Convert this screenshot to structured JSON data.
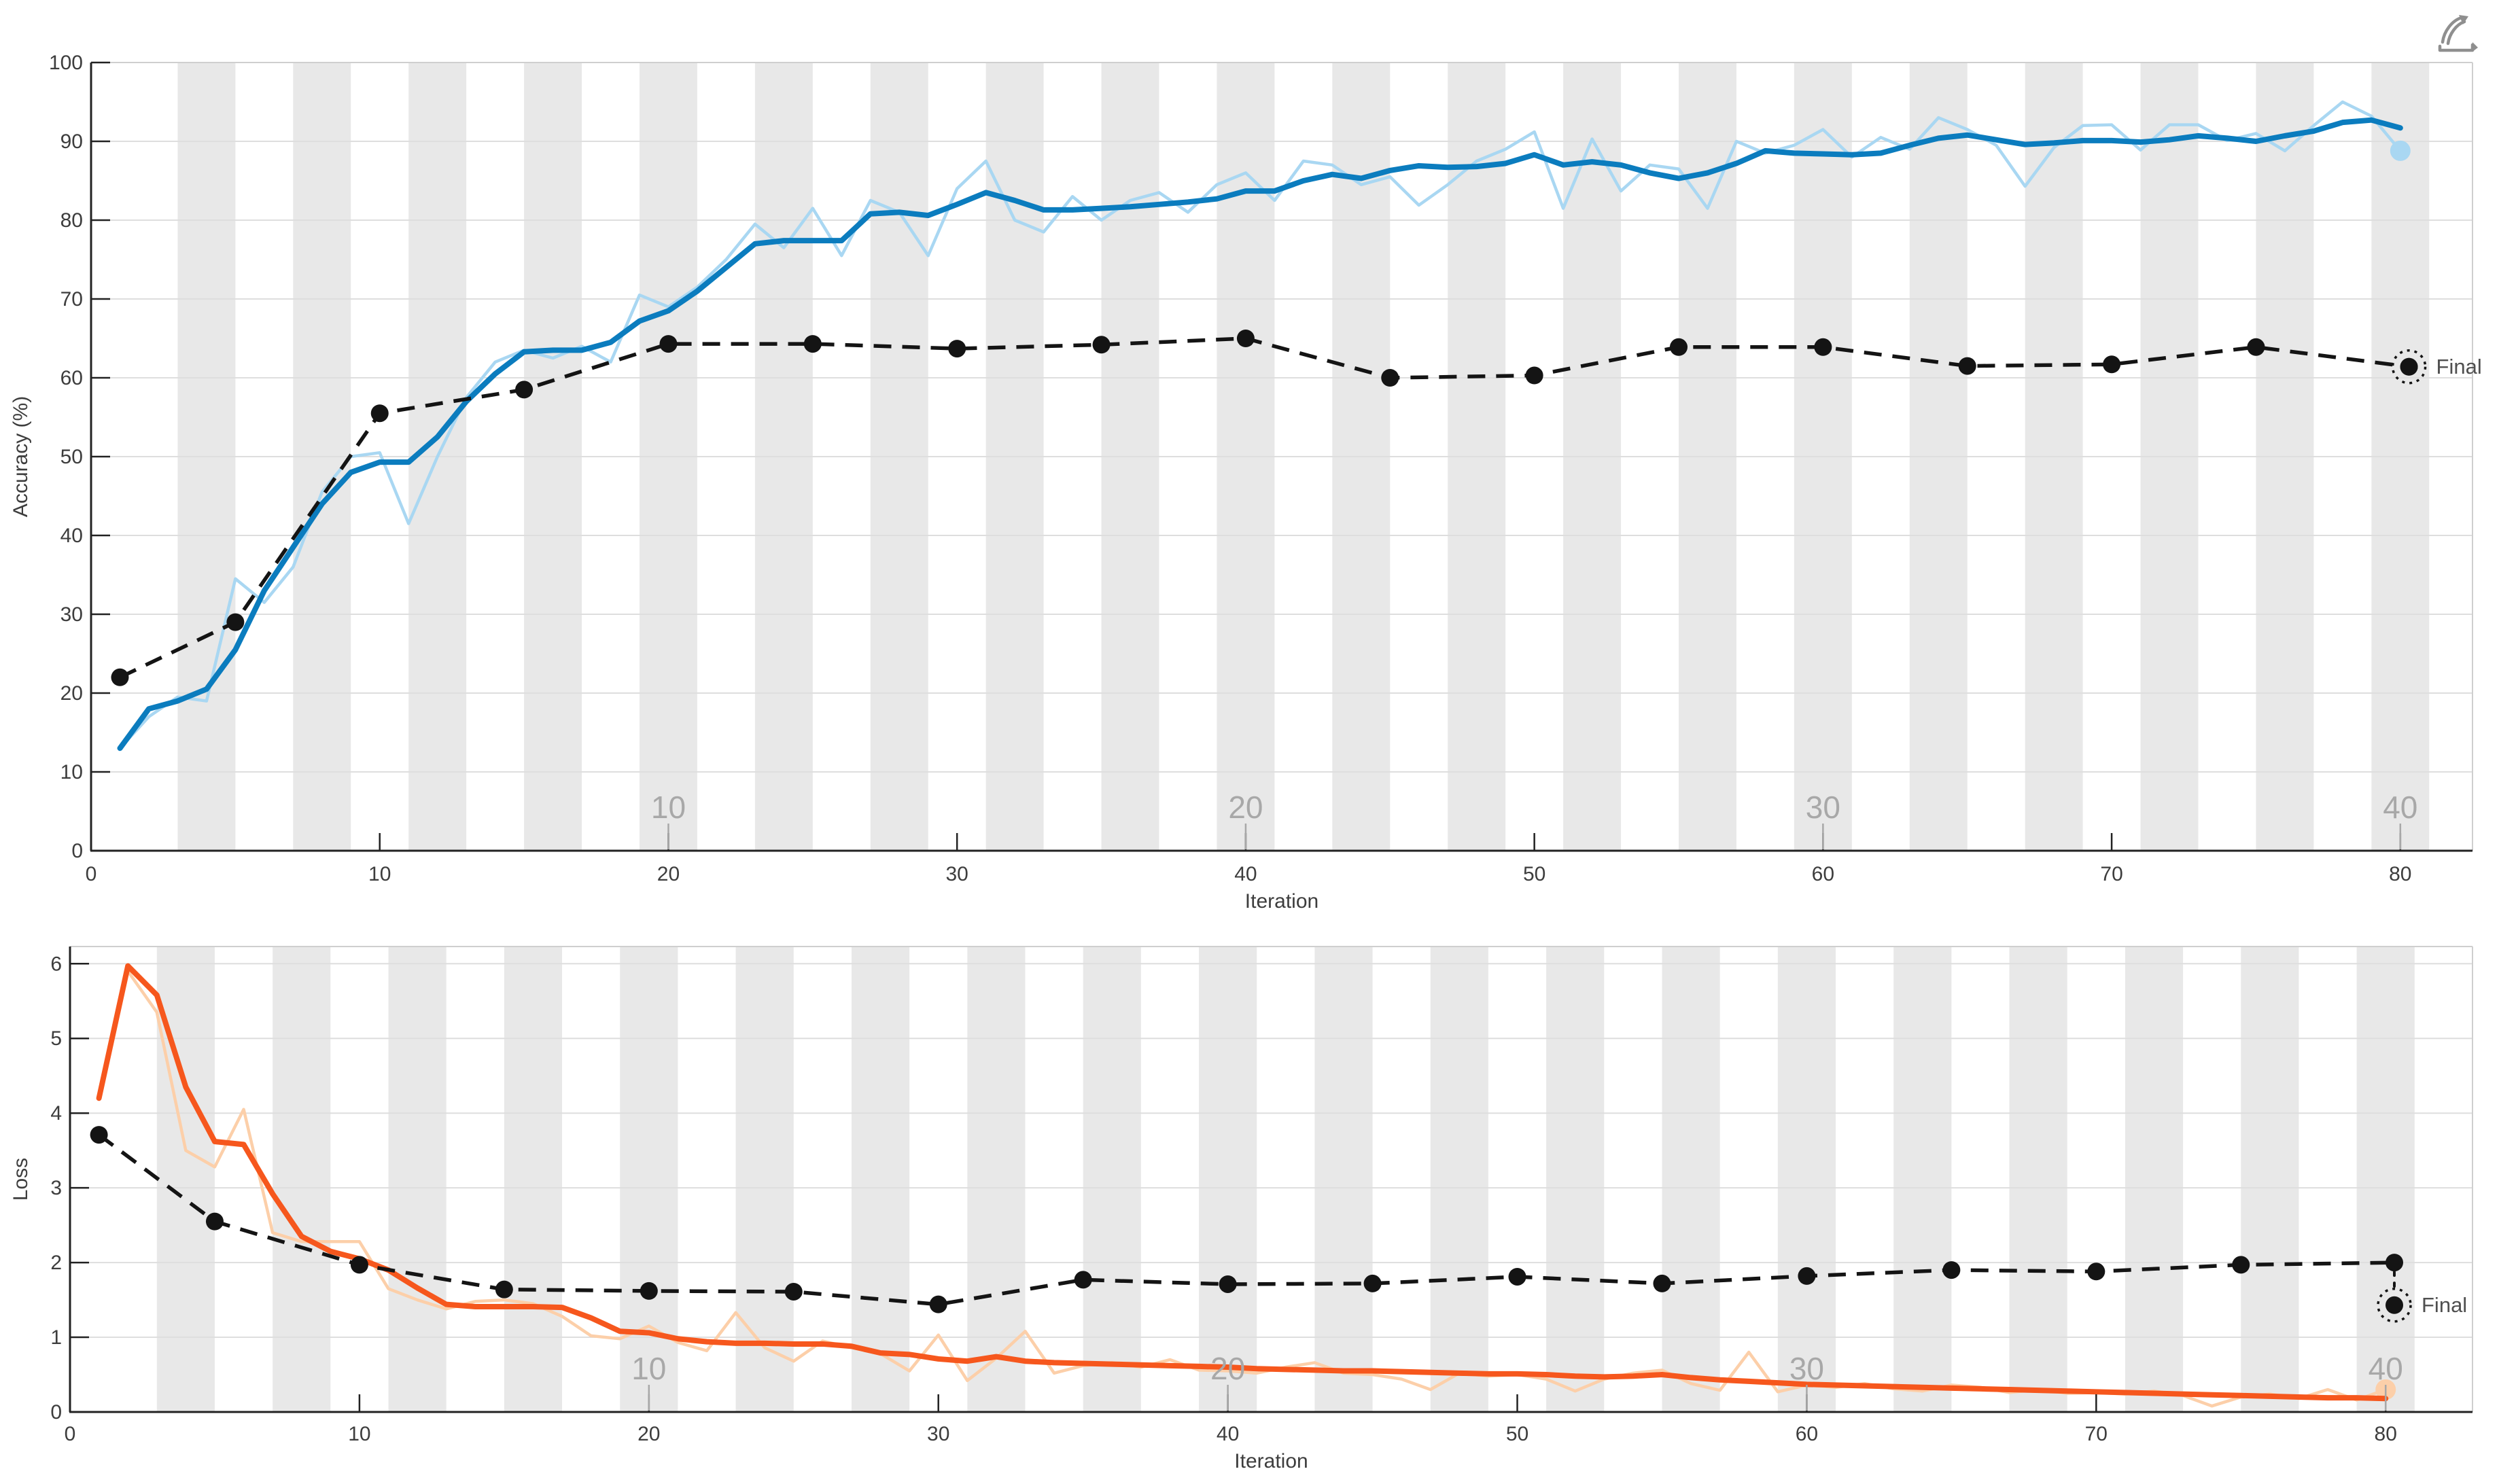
{
  "figure": {
    "final_label": "Final",
    "iteration_axis_label": "Iteration",
    "toolbar": {
      "brush_icon": "brush-icon"
    }
  },
  "colors": {
    "accuracy_smoothed": "#0b7cbe",
    "accuracy_raw": "#a9d7f2",
    "loss_smoothed": "#f6571d",
    "loss_raw": "#fccfa9",
    "validation": "#141414",
    "epoch_band": "#e8e8e8",
    "gridline": "#dedede",
    "light_border": "#cfcfcf",
    "axis_line": "#222222",
    "tick_label": "#3d3d3d",
    "epoch_label": "#a8a8a8",
    "final_text": "#4f4f4f",
    "icon": "#8f8f8f"
  },
  "chart_data": [
    {
      "type": "line",
      "ylabel": "Accuracy (%)",
      "xlabel": "Iteration",
      "xlim": [
        0,
        82.5
      ],
      "ylim": [
        0,
        100
      ],
      "xticks": [
        0,
        10,
        20,
        30,
        40,
        50,
        60,
        70,
        80
      ],
      "yticks": [
        0,
        10,
        20,
        30,
        40,
        50,
        60,
        70,
        80,
        90,
        100
      ],
      "grid": "horizontal",
      "epoch_bands": {
        "first_start_iteration": 3,
        "band_width": 2,
        "spacing": 4,
        "count": 20
      },
      "epoch_axis_labels": [
        {
          "label": "10",
          "at_iteration": 20
        },
        {
          "label": "20",
          "at_iteration": 40
        },
        {
          "label": "30",
          "at_iteration": 60
        },
        {
          "label": "40",
          "at_iteration": 80
        }
      ],
      "final_marker": {
        "iteration": 80.3,
        "value": 61.4,
        "label": "Final",
        "connector_from_value": null
      },
      "series": [
        {
          "name": "training-accuracy-raw",
          "role": "raw",
          "end_dot": true,
          "x": [
            1,
            2,
            3,
            4,
            5,
            6,
            7,
            8,
            9,
            10,
            11,
            12,
            13,
            14,
            15,
            16,
            17,
            18,
            19,
            20,
            21,
            22,
            23,
            24,
            25,
            26,
            27,
            28,
            29,
            30,
            31,
            32,
            33,
            34,
            35,
            36,
            37,
            38,
            39,
            40,
            41,
            42,
            43,
            44,
            45,
            46,
            47,
            48,
            49,
            50,
            51,
            52,
            53,
            54,
            55,
            56,
            57,
            58,
            59,
            60,
            61,
            62,
            63,
            64,
            65,
            66,
            67,
            68,
            69,
            70,
            71,
            72,
            73,
            74,
            75,
            76,
            77,
            78,
            79,
            80
          ],
          "y": [
            13,
            17,
            19.5,
            19,
            34.5,
            31.5,
            36,
            45.5,
            50,
            50.5,
            41.5,
            50,
            57.5,
            62,
            63.5,
            62.5,
            64,
            62,
            70.5,
            69,
            71.5,
            75,
            79.5,
            76.5,
            81.5,
            75.5,
            82.5,
            81,
            75.5,
            84,
            87.5,
            80,
            78.5,
            83,
            80,
            82.5,
            83.5,
            81,
            84.5,
            86,
            82.5,
            87.5,
            87,
            84.5,
            85.5,
            81.9,
            84.5,
            87.5,
            89,
            91.2,
            81.5,
            90.3,
            83.7,
            87,
            86.5,
            81.5,
            90,
            88.5,
            89.5,
            91.5,
            88,
            90.5,
            89,
            93,
            91.5,
            89.5,
            84.3,
            89.2,
            92,
            92.1,
            88.9,
            92.1,
            92.1,
            90.1,
            91,
            88.8,
            92,
            95,
            93.2,
            88.8
          ]
        },
        {
          "name": "training-accuracy-smoothed",
          "role": "smoothed",
          "end_dot": false,
          "x": [
            1,
            2,
            3,
            4,
            5,
            6,
            7,
            8,
            9,
            10,
            11,
            12,
            13,
            14,
            15,
            16,
            17,
            18,
            19,
            20,
            21,
            22,
            23,
            24,
            25,
            26,
            27,
            28,
            29,
            30,
            31,
            32,
            33,
            34,
            35,
            36,
            37,
            38,
            39,
            40,
            41,
            42,
            43,
            44,
            45,
            46,
            47,
            48,
            49,
            50,
            51,
            52,
            53,
            54,
            55,
            56,
            57,
            58,
            59,
            60,
            61,
            62,
            63,
            64,
            65,
            66,
            67,
            68,
            69,
            70,
            71,
            72,
            73,
            74,
            75,
            76,
            77,
            78,
            79,
            80
          ],
          "y": [
            13,
            18,
            19,
            20.5,
            25.5,
            33,
            38.5,
            44,
            48,
            49.3,
            49.3,
            52.5,
            57,
            60.5,
            63.3,
            63.5,
            63.5,
            64.5,
            67.2,
            68.5,
            71,
            74,
            77,
            77.4,
            77.4,
            77.4,
            80.8,
            81,
            80.6,
            82,
            83.5,
            82.5,
            81.3,
            81.3,
            81.5,
            81.7,
            82,
            82.3,
            82.7,
            83.7,
            83.7,
            85,
            85.8,
            85.3,
            86.3,
            86.9,
            86.7,
            86.8,
            87.2,
            88.3,
            87,
            87.4,
            87,
            86,
            85.3,
            86,
            87.2,
            88.8,
            88.5,
            88.4,
            88.3,
            88.5,
            89.5,
            90.4,
            90.8,
            90.2,
            89.6,
            89.8,
            90.1,
            90.1,
            89.9,
            90.2,
            90.7,
            90.4,
            90,
            90.7,
            91.3,
            92.4,
            92.7,
            91.7
          ]
        },
        {
          "name": "validation-accuracy",
          "role": "validation",
          "markers": true,
          "x": [
            1,
            5,
            10,
            15,
            20,
            25,
            30,
            35,
            40,
            45,
            50,
            55,
            60,
            65,
            70,
            75,
            80.3
          ],
          "y": [
            22,
            29,
            55.5,
            58.5,
            64.3,
            64.3,
            63.7,
            64.2,
            65,
            60,
            60.3,
            63.9,
            63.9,
            61.5,
            61.7,
            63.9,
            61.4
          ]
        }
      ]
    },
    {
      "type": "line",
      "ylabel": "Loss",
      "xlabel": "Iteration",
      "xlim": [
        0,
        83
      ],
      "ylim": [
        0,
        6.23
      ],
      "xticks": [
        0,
        10,
        20,
        30,
        40,
        50,
        60,
        70,
        80
      ],
      "yticks": [
        0,
        1,
        2,
        3,
        4,
        5,
        6
      ],
      "grid": "horizontal",
      "epoch_bands": {
        "first_start_iteration": 3,
        "band_width": 2,
        "spacing": 4,
        "count": 20
      },
      "epoch_axis_labels": [
        {
          "label": "10",
          "at_iteration": 20
        },
        {
          "label": "20",
          "at_iteration": 40
        },
        {
          "label": "30",
          "at_iteration": 60
        },
        {
          "label": "40",
          "at_iteration": 80
        }
      ],
      "final_marker": {
        "iteration": 80.3,
        "value": 1.43,
        "label": "Final",
        "connector_from_value": 2.0
      },
      "series": [
        {
          "name": "training-loss-raw",
          "role": "raw",
          "end_dot": true,
          "x": [
            1,
            2,
            3,
            4,
            5,
            6,
            7,
            8,
            9,
            10,
            11,
            12,
            13,
            14,
            15,
            16,
            17,
            18,
            19,
            20,
            21,
            22,
            23,
            24,
            25,
            26,
            27,
            28,
            29,
            30,
            31,
            32,
            33,
            34,
            35,
            36,
            37,
            38,
            39,
            40,
            41,
            42,
            43,
            44,
            45,
            46,
            47,
            48,
            49,
            50,
            51,
            52,
            53,
            54,
            55,
            56,
            57,
            58,
            59,
            60,
            61,
            62,
            63,
            64,
            65,
            66,
            67,
            68,
            69,
            70,
            71,
            72,
            73,
            74,
            75,
            76,
            77,
            78,
            79,
            80
          ],
          "y": [
            4.2,
            5.9,
            5.35,
            3.5,
            3.28,
            4.05,
            2.4,
            2.28,
            2.28,
            2.28,
            1.65,
            1.5,
            1.38,
            1.48,
            1.5,
            1.45,
            1.28,
            1.02,
            0.98,
            1.15,
            0.93,
            0.82,
            1.33,
            0.86,
            0.68,
            0.95,
            0.86,
            0.78,
            0.55,
            1.03,
            0.42,
            0.72,
            1.08,
            0.52,
            0.62,
            0.66,
            0.6,
            0.7,
            0.56,
            0.55,
            0.52,
            0.6,
            0.66,
            0.52,
            0.5,
            0.44,
            0.3,
            0.52,
            0.48,
            0.5,
            0.44,
            0.28,
            0.44,
            0.52,
            0.56,
            0.38,
            0.29,
            0.8,
            0.27,
            0.36,
            0.33,
            0.38,
            0.31,
            0.28,
            0.36,
            0.33,
            0.26,
            0.3,
            0.25,
            0.26,
            0.24,
            0.28,
            0.22,
            0.08,
            0.2,
            0.24,
            0.18,
            0.3,
            0.16,
            0.3
          ]
        },
        {
          "name": "training-loss-smoothed",
          "role": "smoothed",
          "end_dot": false,
          "x": [
            1,
            2,
            3,
            4,
            5,
            6,
            7,
            8,
            9,
            10,
            11,
            12,
            13,
            14,
            15,
            16,
            17,
            18,
            19,
            20,
            21,
            22,
            23,
            24,
            25,
            26,
            27,
            28,
            29,
            30,
            31,
            32,
            33,
            34,
            35,
            36,
            37,
            38,
            39,
            40,
            41,
            42,
            43,
            44,
            45,
            46,
            47,
            48,
            49,
            50,
            51,
            52,
            53,
            54,
            55,
            56,
            57,
            58,
            59,
            60,
            61,
            62,
            63,
            64,
            65,
            66,
            67,
            68,
            69,
            70,
            71,
            72,
            73,
            74,
            75,
            76,
            77,
            78,
            79,
            80
          ],
          "y": [
            4.2,
            5.97,
            5.58,
            4.35,
            3.62,
            3.58,
            2.92,
            2.35,
            2.15,
            2.05,
            1.9,
            1.66,
            1.44,
            1.41,
            1.41,
            1.41,
            1.4,
            1.26,
            1.08,
            1.06,
            0.98,
            0.94,
            0.92,
            0.92,
            0.91,
            0.91,
            0.88,
            0.79,
            0.77,
            0.71,
            0.68,
            0.74,
            0.68,
            0.66,
            0.65,
            0.64,
            0.63,
            0.62,
            0.61,
            0.6,
            0.58,
            0.57,
            0.56,
            0.55,
            0.55,
            0.54,
            0.53,
            0.52,
            0.51,
            0.51,
            0.5,
            0.48,
            0.47,
            0.48,
            0.5,
            0.46,
            0.43,
            0.41,
            0.39,
            0.37,
            0.36,
            0.35,
            0.34,
            0.33,
            0.32,
            0.31,
            0.3,
            0.29,
            0.28,
            0.27,
            0.26,
            0.25,
            0.24,
            0.23,
            0.22,
            0.21,
            0.2,
            0.19,
            0.19,
            0.18
          ]
        },
        {
          "name": "validation-loss",
          "role": "validation",
          "markers": true,
          "x": [
            1,
            5,
            10,
            15,
            20,
            25,
            30,
            35,
            40,
            45,
            50,
            55,
            60,
            65,
            70,
            75,
            80.3
          ],
          "y": [
            3.71,
            2.55,
            1.97,
            1.64,
            1.62,
            1.61,
            1.44,
            1.77,
            1.71,
            1.72,
            1.81,
            1.72,
            1.82,
            1.9,
            1.88,
            1.97,
            2.0
          ]
        }
      ]
    }
  ]
}
